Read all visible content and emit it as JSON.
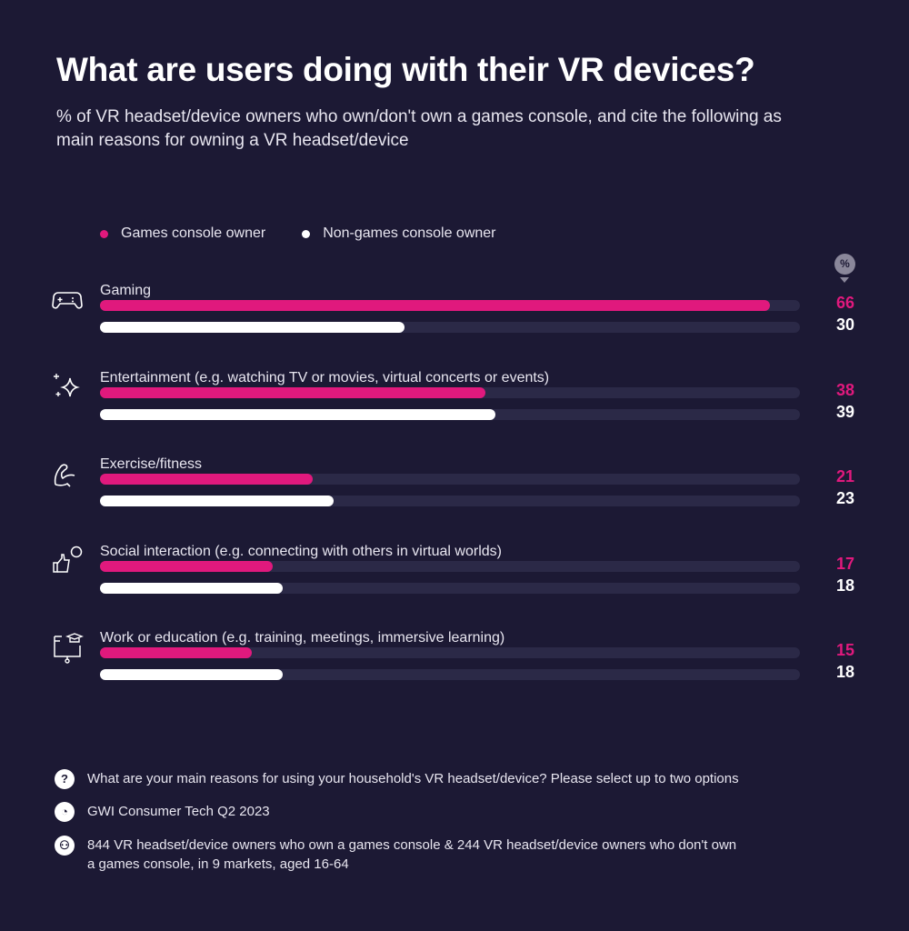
{
  "title": "What are users doing with their VR devices?",
  "subtitle": "% of VR headset/device owners who own/don't own a games console, and cite the following as main reasons for owning a VR headset/device",
  "unit_badge": "%",
  "colors": {
    "background": "#1c1934",
    "games_console_owner": "#e0197d",
    "non_games_console_owner": "#ffffff",
    "track": "#2b2947"
  },
  "chart_data": {
    "type": "bar",
    "orientation": "horizontal",
    "categories": [
      "Gaming",
      "Entertainment (e.g. watching TV or movies, virtual concerts or events)",
      "Exercise/fitness",
      "Social interaction (e.g. connecting with others in virtual worlds)",
      "Work or education (e.g. training, meetings, immersive learning)"
    ],
    "category_icons": [
      "gamepad-icon",
      "sparkles-icon",
      "flexed-arm-icon",
      "thumbs-up-chat-icon",
      "presentation-graduation-icon"
    ],
    "series": [
      {
        "name": "Games console owner",
        "values": [
          66,
          38,
          21,
          17,
          15
        ]
      },
      {
        "name": "Non-games console owner",
        "values": [
          30,
          39,
          23,
          18,
          18
        ]
      }
    ],
    "xlim": [
      0,
      69
    ],
    "legend": "top-left",
    "grid": false
  },
  "notes": {
    "question": "What are your main reasons for using your household's VR headset/device? Please select up to two options",
    "source": "GWI Consumer Tech Q2 2023",
    "base": "844 VR headset/device owners who own a games console & 244 VR headset/device owners who don't own a games console, in 9 markets, aged 16-64"
  }
}
